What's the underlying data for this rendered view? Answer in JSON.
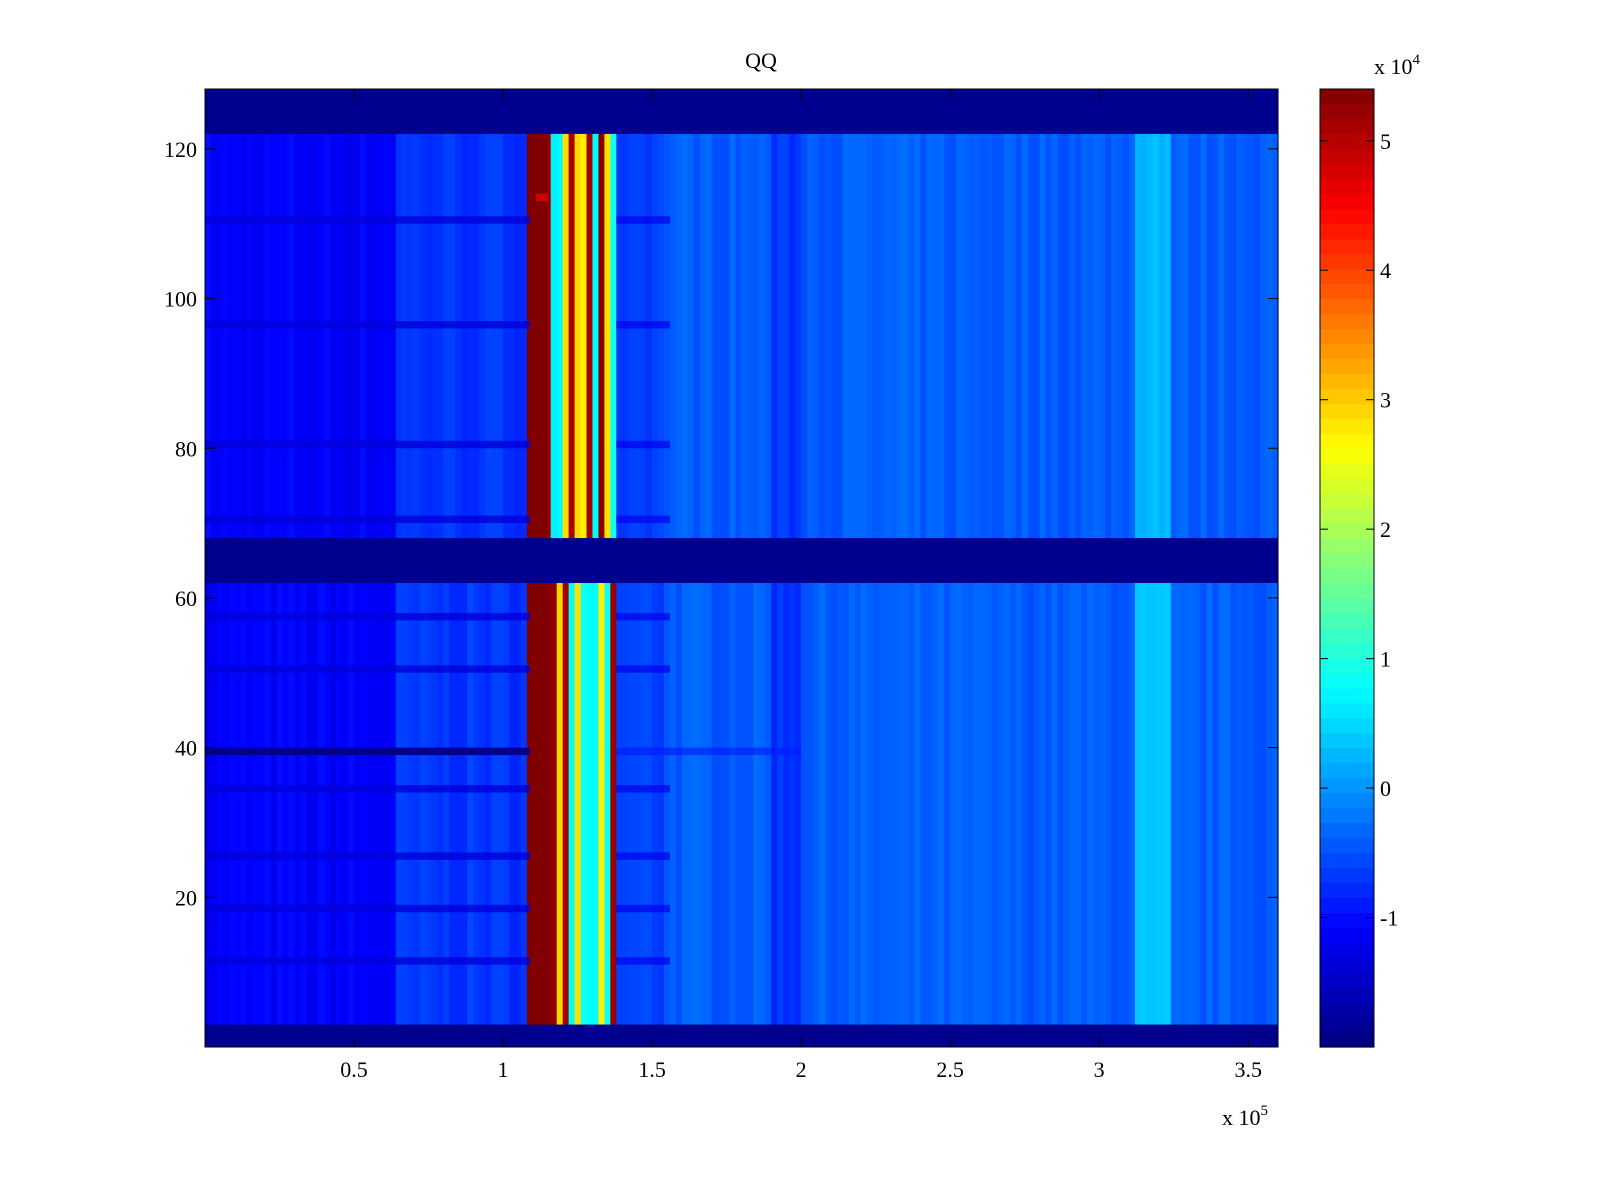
{
  "chart_data": {
    "type": "heatmap",
    "title": "QQ",
    "xlabel": "",
    "ylabel": "",
    "x_multiplier": "x 10",
    "x_multiplier_exp": "5",
    "xlim": [
      0,
      3.6
    ],
    "ylim": [
      0,
      128
    ],
    "x_ticks": [
      0.5,
      1,
      1.5,
      2,
      2.5,
      3,
      3.5
    ],
    "x_tick_labels": [
      "0.5",
      "1",
      "1.5",
      "2",
      "2.5",
      "3",
      "3.5"
    ],
    "y_ticks": [
      20,
      40,
      60,
      80,
      100,
      120
    ],
    "y_tick_labels": [
      "20",
      "40",
      "60",
      "80",
      "100",
      "120"
    ],
    "colormap": "jet",
    "colorbar": {
      "multiplier": "x 10",
      "multiplier_exp": "4",
      "clim": [
        -2,
        5.4
      ],
      "ticks": [
        -1,
        0,
        1,
        2,
        3,
        4,
        5
      ],
      "tick_labels": [
        "-1",
        "0",
        "1",
        "2",
        "3",
        "4",
        "5"
      ]
    },
    "background_value": -0.4,
    "empty_row_bands": [
      [
        0,
        3
      ],
      [
        62,
        68
      ],
      [
        122,
        128
      ]
    ],
    "row_pattern": {
      "lower_block": [
        3,
        62
      ],
      "upper_block": [
        68,
        122
      ],
      "dark_rows": [
        39
      ],
      "low_rows": [
        11,
        18,
        25,
        34,
        50,
        57,
        70,
        80,
        96,
        110
      ]
    },
    "column_features": [
      {
        "x": [
          0,
          0.65
        ],
        "value": -1.1
      },
      {
        "x": [
          0.65,
          1.09
        ],
        "value": -0.7
      },
      {
        "x": [
          1.09,
          1.15
        ],
        "value": 5.4
      },
      {
        "x": [
          1.15,
          1.38
        ],
        "value": 3.0
      },
      {
        "x": [
          1.38,
          1.55
        ],
        "value": -0.6
      },
      {
        "x": [
          1.9,
          2.0
        ],
        "value": -0.7
      },
      {
        "x": [
          3.13,
          3.25
        ],
        "value": 0.3
      }
    ],
    "highlight_cell": {
      "x": 1.13,
      "y": 113,
      "value": 4.8
    }
  }
}
